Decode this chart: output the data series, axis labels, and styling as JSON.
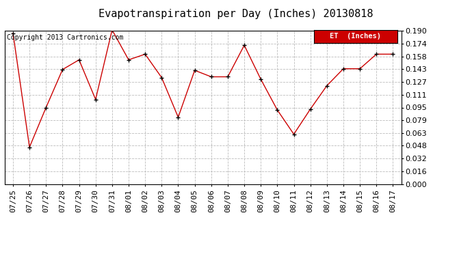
{
  "title": "Evapotranspiration per Day (Inches) 20130818",
  "copyright": "Copyright 2013 Cartronics.com",
  "legend_label": "ET  (Inches)",
  "dates": [
    "07/25",
    "07/26",
    "07/27",
    "07/28",
    "07/29",
    "07/30",
    "07/31",
    "08/01",
    "08/02",
    "08/03",
    "08/04",
    "08/05",
    "08/06",
    "08/07",
    "08/08",
    "08/09",
    "08/10",
    "08/11",
    "08/12",
    "08/13",
    "08/14",
    "08/15",
    "08/16",
    "08/17"
  ],
  "values": [
    0.187,
    0.046,
    0.095,
    0.142,
    0.154,
    0.105,
    0.191,
    0.154,
    0.161,
    0.132,
    0.083,
    0.141,
    0.133,
    0.133,
    0.172,
    0.13,
    0.092,
    0.062,
    0.093,
    0.122,
    0.143,
    0.143,
    0.161,
    0.161
  ],
  "ylim": [
    0.0,
    0.19
  ],
  "yticks": [
    0.0,
    0.016,
    0.032,
    0.048,
    0.063,
    0.079,
    0.095,
    0.111,
    0.127,
    0.143,
    0.158,
    0.174,
    0.19
  ],
  "line_color": "#cc0000",
  "marker_color": "#000000",
  "background_color": "#ffffff",
  "grid_color": "#bbbbbb",
  "title_fontsize": 11,
  "tick_fontsize": 8,
  "copyright_fontsize": 7,
  "legend_bg": "#cc0000",
  "legend_text_color": "#ffffff"
}
